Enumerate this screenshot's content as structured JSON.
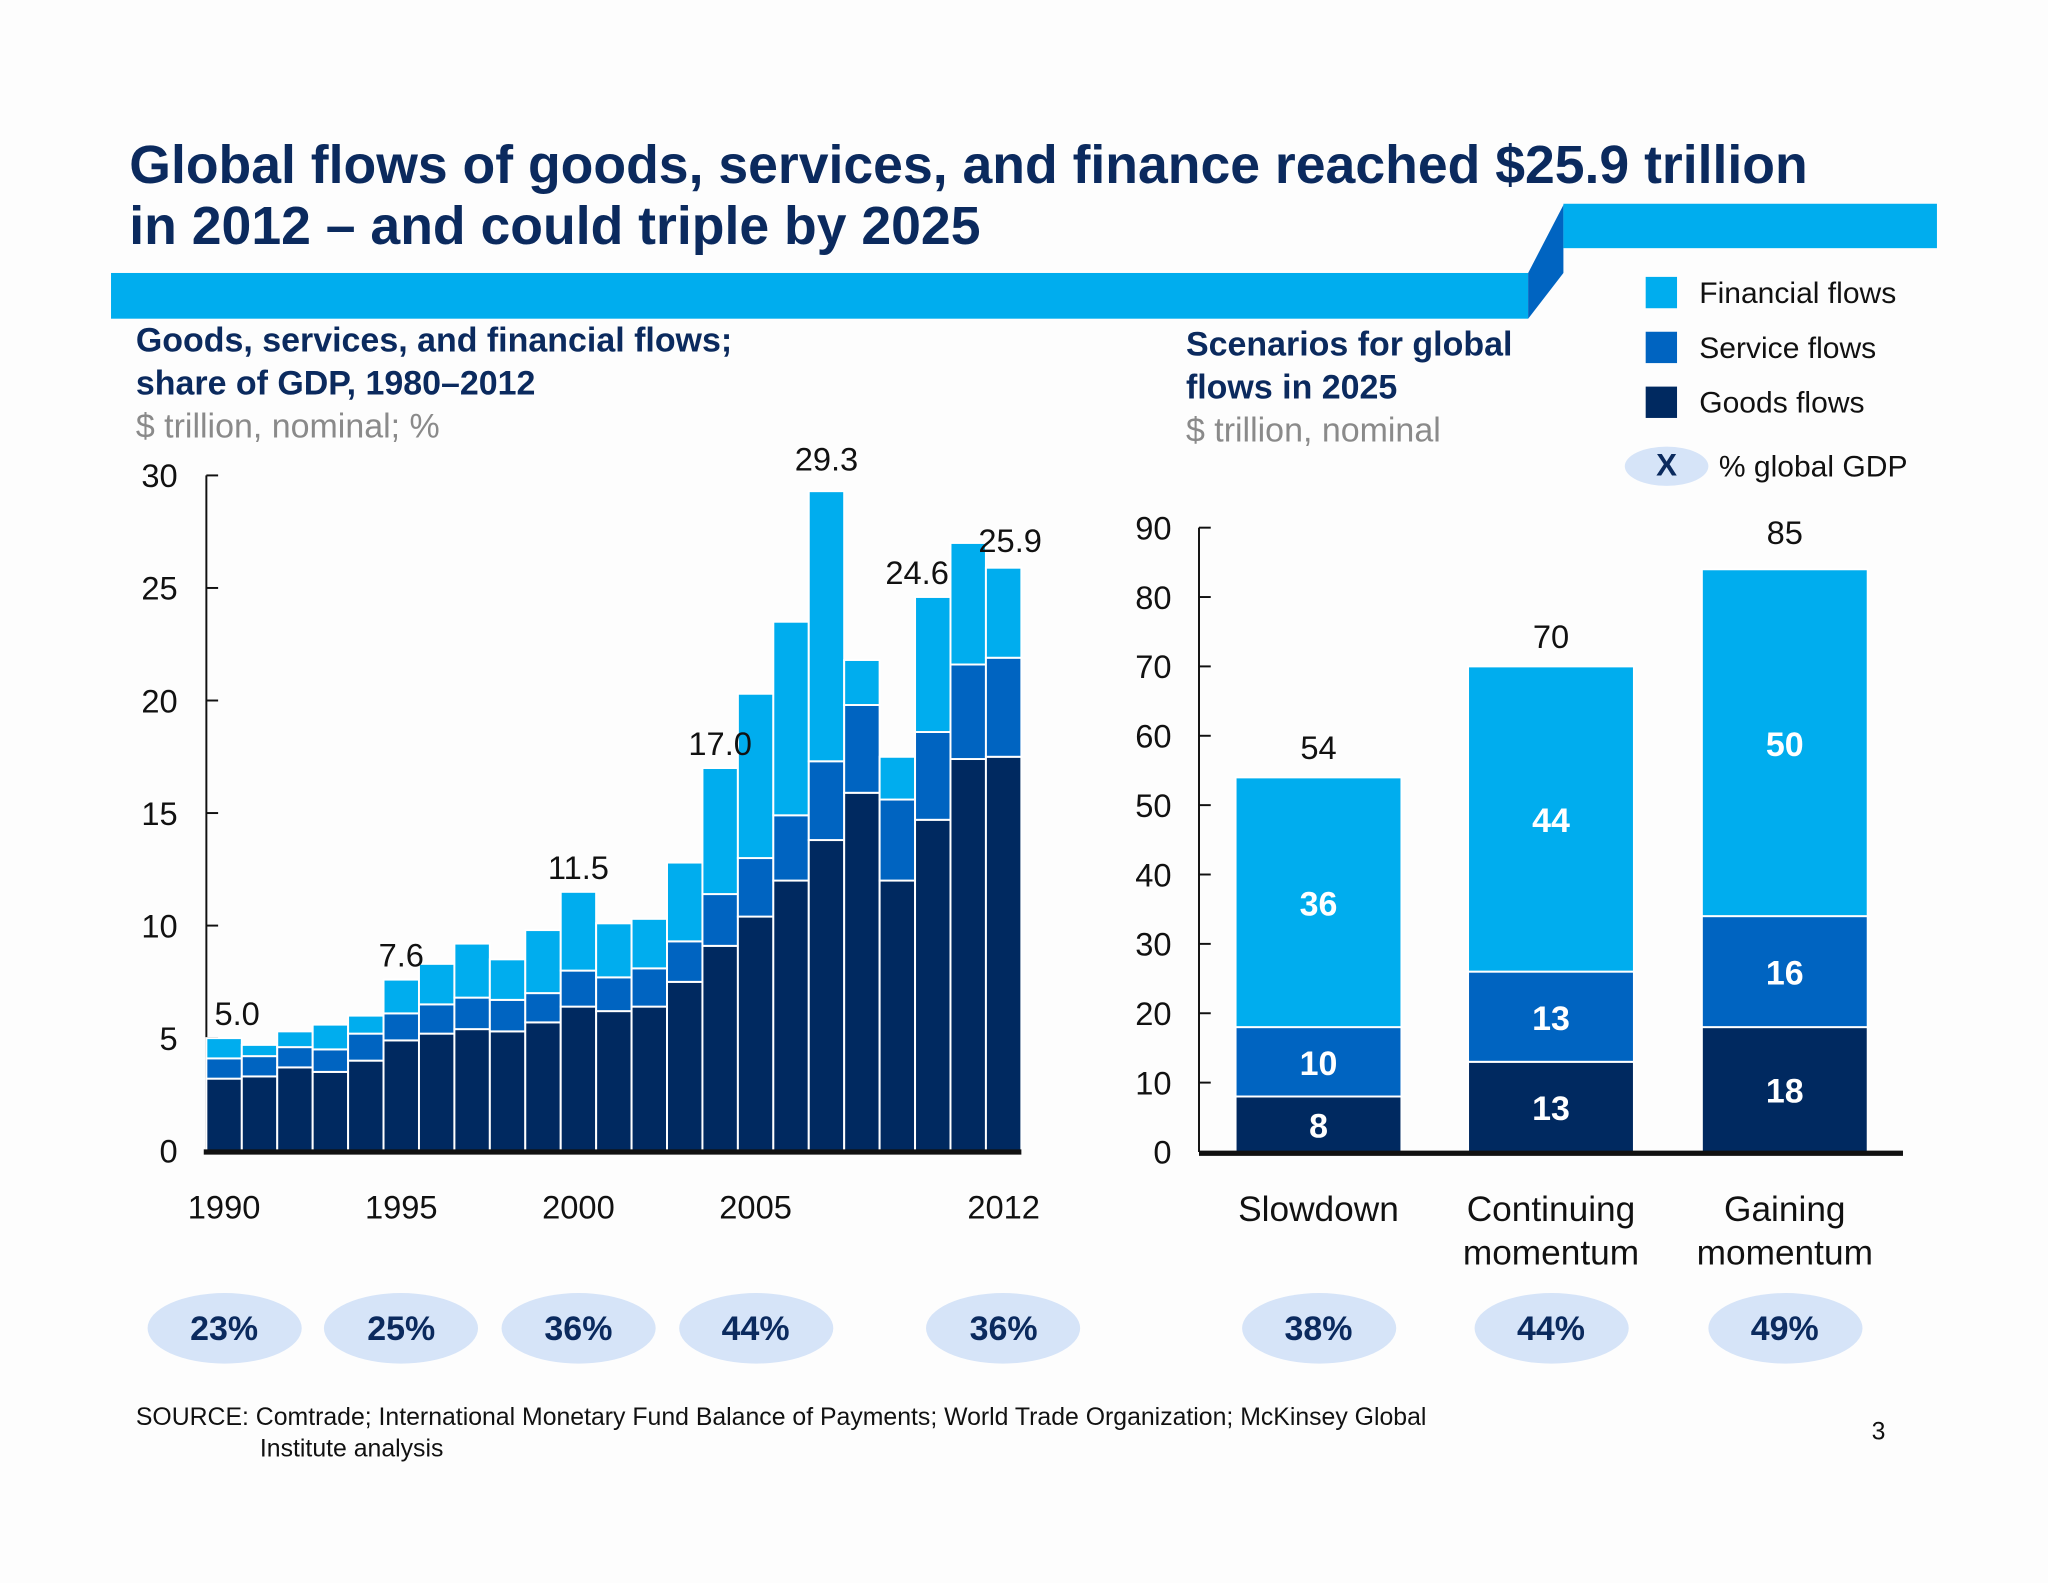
{
  "title": "Global flows of goods, services, and finance reached $25.9 trillion in 2012 – and could triple by 2025",
  "colors": {
    "financial": "#00adee",
    "service": "#0064c1",
    "goods": "#002960",
    "bubble": "#d6e4f8",
    "title": "#0b2a5e"
  },
  "legend": {
    "items": [
      {
        "label": "Financial flows",
        "color": "#00adee"
      },
      {
        "label": "Service flows",
        "color": "#0064c1"
      },
      {
        "label": "Goods flows",
        "color": "#002960"
      }
    ],
    "bubble_symbol": "X",
    "bubble_label": "% global GDP"
  },
  "source_label": "SOURCE: Comtrade; International Monetary Fund Balance of Payments; World Trade Organization; McKinsey Global",
  "source_label_cont": "Institute analysis",
  "page_number": "3",
  "chart_data": [
    {
      "type": "bar",
      "stacked": true,
      "title": "Goods, services, and financial flows; share of GDP, 1980–2012",
      "title_line1": "Goods, services, and financial flows;",
      "title_line2": "share of GDP, 1980–2012",
      "ylabel": "$ trillion, nominal; %",
      "ylim": [
        0,
        30
      ],
      "yticks": [
        "0",
        "5",
        "10",
        "15",
        "20",
        "25",
        "30"
      ],
      "categories": [
        1990,
        1991,
        1992,
        1993,
        1994,
        1995,
        1996,
        1997,
        1998,
        1999,
        2000,
        2001,
        2002,
        2003,
        2004,
        2005,
        2006,
        2007,
        2008,
        2009,
        2010,
        2011,
        2012
      ],
      "xtick_labels": [
        "1990",
        "1995",
        "2000",
        "2005",
        "2012"
      ],
      "series": [
        {
          "name": "Goods flows",
          "values": [
            3.2,
            3.3,
            3.7,
            3.5,
            4.0,
            4.9,
            5.2,
            5.4,
            5.3,
            5.7,
            6.4,
            6.2,
            6.4,
            7.5,
            9.1,
            10.4,
            12.0,
            13.8,
            15.9,
            12.0,
            14.7,
            17.4,
            17.5
          ]
        },
        {
          "name": "Service flows",
          "values": [
            0.9,
            0.9,
            0.9,
            1.0,
            1.2,
            1.2,
            1.3,
            1.4,
            1.4,
            1.3,
            1.6,
            1.5,
            1.7,
            1.8,
            2.3,
            2.6,
            2.9,
            3.5,
            3.9,
            3.6,
            3.9,
            4.2,
            4.4
          ]
        },
        {
          "name": "Financial flows",
          "values": [
            0.9,
            0.5,
            0.7,
            1.1,
            0.8,
            1.5,
            1.8,
            2.4,
            1.8,
            2.8,
            3.5,
            2.4,
            2.2,
            3.5,
            5.6,
            7.3,
            8.6,
            12.0,
            2.0,
            1.9,
            6.0,
            5.4,
            4.0
          ]
        }
      ],
      "total_labels": [
        {
          "year": 1990,
          "label": "5.0"
        },
        {
          "year": 1995,
          "label": "7.6"
        },
        {
          "year": 2000,
          "label": "11.5"
        },
        {
          "year": 2004,
          "label": "17.0"
        },
        {
          "year": 2007,
          "label": "29.3"
        },
        {
          "year": 2010,
          "label": "24.6"
        },
        {
          "year": 2012,
          "label": "25.9"
        }
      ],
      "gdp_share": [
        {
          "year": 1990,
          "label": "23%"
        },
        {
          "year": 1995,
          "label": "25%"
        },
        {
          "year": 2000,
          "label": "36%"
        },
        {
          "year": 2005,
          "label": "44%"
        },
        {
          "year": 2012,
          "label": "36%"
        }
      ]
    },
    {
      "type": "bar",
      "stacked": true,
      "title": "Scenarios for global flows in 2025",
      "title_line1": "Scenarios for global",
      "title_line2": "flows in 2025",
      "ylabel": "$ trillion, nominal",
      "ylim": [
        0,
        90
      ],
      "yticks": [
        "0",
        "10",
        "20",
        "30",
        "40",
        "50",
        "60",
        "70",
        "80",
        "90"
      ],
      "categories": [
        "Slowdown",
        "Continuing momentum",
        "Gaining momentum"
      ],
      "category_lines": [
        [
          "Slowdown"
        ],
        [
          "Continuing",
          "momentum"
        ],
        [
          "Gaining",
          "momentum"
        ]
      ],
      "series": [
        {
          "name": "Goods flows",
          "values": [
            8,
            13,
            18
          ]
        },
        {
          "name": "Service flows",
          "values": [
            10,
            13,
            16
          ]
        },
        {
          "name": "Financial flows",
          "values": [
            36,
            44,
            50
          ]
        }
      ],
      "totals": [
        54,
        70,
        85
      ],
      "gdp_share": [
        "38%",
        "44%",
        "49%"
      ]
    }
  ]
}
